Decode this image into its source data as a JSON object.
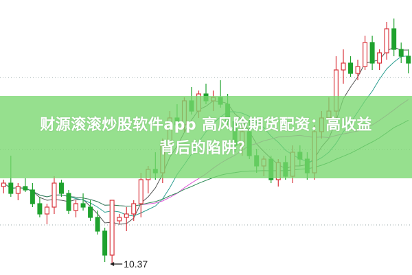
{
  "title": {
    "line1": "财源滚滚炒股软件app 高风险期货配资：高收益",
    "line2": "背后的陷阱？"
  },
  "chart_data": {
    "type": "candlestick",
    "ylim": [
      10.21,
      14.22
    ],
    "grid": "dotted horizontal",
    "colors": {
      "up": "#d9323a",
      "down": "#1fa22e",
      "ma5": "#555555",
      "ma10": "#2a9d8f",
      "ma20": "#e05ad8",
      "ma60": "#2e8b57"
    },
    "low_annotation": {
      "label": "10.37",
      "value": 10.37
    },
    "ohlc": [
      [
        11.5,
        11.6,
        11.4,
        11.55
      ],
      [
        11.55,
        11.95,
        11.35,
        11.4
      ],
      [
        11.4,
        11.55,
        11.3,
        11.5
      ],
      [
        11.5,
        11.62,
        11.42,
        11.45
      ],
      [
        11.45,
        11.55,
        11.2,
        11.25
      ],
      [
        11.25,
        11.35,
        11.05,
        11.1
      ],
      [
        11.1,
        11.25,
        10.95,
        11.2
      ],
      [
        11.2,
        11.65,
        11.1,
        11.55
      ],
      [
        11.55,
        11.6,
        11.35,
        11.4
      ],
      [
        11.4,
        11.45,
        11.1,
        11.15
      ],
      [
        11.15,
        11.3,
        11.05,
        11.25
      ],
      [
        11.25,
        11.4,
        11.15,
        11.2
      ],
      [
        11.2,
        11.3,
        11.0,
        11.05
      ],
      [
        11.05,
        11.15,
        10.8,
        10.85
      ],
      [
        10.85,
        10.9,
        10.4,
        10.5
      ],
      [
        10.5,
        11.3,
        10.37,
        11.3
      ],
      [
        11.0,
        11.1,
        10.95,
        11.05
      ],
      [
        11.05,
        11.2,
        10.85,
        11.1
      ],
      [
        11.1,
        11.3,
        11.0,
        11.25
      ],
      [
        11.25,
        11.7,
        11.05,
        11.6
      ],
      [
        11.6,
        11.8,
        11.4,
        11.75
      ],
      [
        11.75,
        12.0,
        11.6,
        11.7
      ],
      [
        11.7,
        12.2,
        11.55,
        12.1
      ],
      [
        12.1,
        12.6,
        12.0,
        12.5
      ],
      [
        12.5,
        12.7,
        12.3,
        12.4
      ],
      [
        12.4,
        12.8,
        12.3,
        12.75
      ],
      [
        12.75,
        12.95,
        12.55,
        12.6
      ],
      [
        12.6,
        12.9,
        12.5,
        12.85
      ],
      [
        12.85,
        13.0,
        12.7,
        12.75
      ],
      [
        12.75,
        12.9,
        12.6,
        12.8
      ],
      [
        12.8,
        13.05,
        12.65,
        12.7
      ],
      [
        12.7,
        12.85,
        12.4,
        12.45
      ],
      [
        12.45,
        12.5,
        12.0,
        12.1
      ],
      [
        12.1,
        12.4,
        11.95,
        12.3
      ],
      [
        12.3,
        12.5,
        11.9,
        11.95
      ],
      [
        11.95,
        12.05,
        11.7,
        11.8
      ],
      [
        11.8,
        11.95,
        11.65,
        11.9
      ],
      [
        11.9,
        11.95,
        11.55,
        11.6
      ],
      [
        11.6,
        11.9,
        11.5,
        11.85
      ],
      [
        11.85,
        11.95,
        11.6,
        11.65
      ],
      [
        11.65,
        12.1,
        11.55,
        12.0
      ],
      [
        12.0,
        12.1,
        11.8,
        11.9
      ],
      [
        11.9,
        12.0,
        11.6,
        11.7
      ],
      [
        11.7,
        12.4,
        11.6,
        12.3
      ],
      [
        12.3,
        12.6,
        12.2,
        12.5
      ],
      [
        12.5,
        12.8,
        12.4,
        12.6
      ],
      [
        12.6,
        13.4,
        12.5,
        13.2
      ],
      [
        13.2,
        13.5,
        13.0,
        13.3
      ],
      [
        13.3,
        13.4,
        13.1,
        13.15
      ],
      [
        13.15,
        13.35,
        13.05,
        13.25
      ],
      [
        13.25,
        13.7,
        13.2,
        13.6
      ],
      [
        13.6,
        13.7,
        13.2,
        13.3
      ],
      [
        13.3,
        13.5,
        13.2,
        13.45
      ],
      [
        13.45,
        13.9,
        13.35,
        13.8
      ],
      [
        13.8,
        13.95,
        13.4,
        13.5
      ],
      [
        13.5,
        13.6,
        13.3,
        13.4
      ],
      [
        13.4,
        13.5,
        13.15,
        13.3
      ]
    ]
  }
}
